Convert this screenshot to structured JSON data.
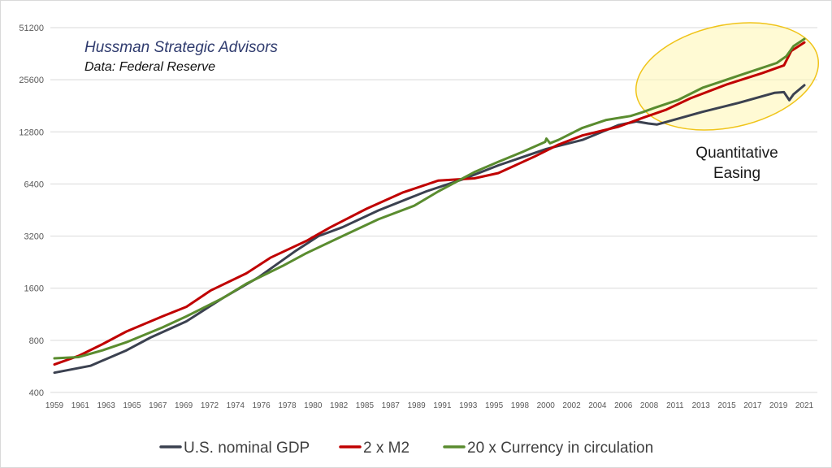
{
  "chart_data": {
    "type": "line",
    "title": "Hussman Strategic Advisors",
    "subtitle": "Data: Federal Reserve",
    "y_scale": "log2",
    "ylim": [
      400,
      51200
    ],
    "y_ticks": [
      "400",
      "800",
      "1600",
      "3200",
      "6400",
      "12800",
      "25600",
      "51200"
    ],
    "x_tick_labels": [
      "1959",
      "1961",
      "1963",
      "1965",
      "1967",
      "1969",
      "1972",
      "1974",
      "1976",
      "1978",
      "1980",
      "1982",
      "1985",
      "1987",
      "1989",
      "1991",
      "1993",
      "1995",
      "1998",
      "2000",
      "2002",
      "2004",
      "2006",
      "2008",
      "2011",
      "2013",
      "2015",
      "2017",
      "2019",
      "2021"
    ],
    "xlim": [
      1959,
      2021.5
    ],
    "annotation": {
      "text_lines": [
        "Quantitative",
        "Easing"
      ]
    },
    "grid": "horizontal",
    "legend_position": "bottom",
    "series": [
      {
        "name": "U.S. nominal GDP",
        "color": "#3b4150",
        "points": [
          [
            1959,
            520
          ],
          [
            1962,
            570
          ],
          [
            1965,
            700
          ],
          [
            1967,
            830
          ],
          [
            1970,
            1030
          ],
          [
            1973,
            1400
          ],
          [
            1976,
            1850
          ],
          [
            1979,
            2600
          ],
          [
            1981,
            3200
          ],
          [
            1983,
            3600
          ],
          [
            1986,
            4500
          ],
          [
            1990,
            5800
          ],
          [
            1993,
            6800
          ],
          [
            1996,
            8200
          ],
          [
            2000,
            10200
          ],
          [
            2003,
            11500
          ],
          [
            2006,
            14000
          ],
          [
            2007.5,
            14700
          ],
          [
            2008.5,
            14300
          ],
          [
            2009.2,
            14100
          ],
          [
            2010,
            14600
          ],
          [
            2013,
            16700
          ],
          [
            2016,
            18800
          ],
          [
            2019,
            21500
          ],
          [
            2019.8,
            21700
          ],
          [
            2020.25,
            19500
          ],
          [
            2020.6,
            21100
          ],
          [
            2021.5,
            23800
          ]
        ]
      },
      {
        "name": "2 x M2",
        "color": "#c00000",
        "points": [
          [
            1959,
            580
          ],
          [
            1961,
            650
          ],
          [
            1963,
            760
          ],
          [
            1965,
            900
          ],
          [
            1968,
            1100
          ],
          [
            1970,
            1250
          ],
          [
            1972,
            1550
          ],
          [
            1975,
            1950
          ],
          [
            1977,
            2400
          ],
          [
            1980,
            3000
          ],
          [
            1982,
            3600
          ],
          [
            1985,
            4600
          ],
          [
            1988,
            5700
          ],
          [
            1991,
            6700
          ],
          [
            1994,
            6900
          ],
          [
            1996,
            7400
          ],
          [
            1999,
            9200
          ],
          [
            2001,
            10800
          ],
          [
            2003,
            12200
          ],
          [
            2006,
            13700
          ],
          [
            2008,
            15400
          ],
          [
            2010,
            17200
          ],
          [
            2012,
            20000
          ],
          [
            2015,
            24000
          ],
          [
            2018,
            28000
          ],
          [
            2019.8,
            31000
          ],
          [
            2020.4,
            37500
          ],
          [
            2021.5,
            42000
          ]
        ]
      },
      {
        "name": "20 x Currency in circulation",
        "color": "#5a8c2f",
        "points": [
          [
            1959,
            630
          ],
          [
            1961,
            640
          ],
          [
            1963,
            700
          ],
          [
            1965,
            780
          ],
          [
            1968,
            950
          ],
          [
            1970,
            1100
          ],
          [
            1973,
            1400
          ],
          [
            1975,
            1700
          ],
          [
            1978,
            2150
          ],
          [
            1980,
            2550
          ],
          [
            1983,
            3200
          ],
          [
            1986,
            4000
          ],
          [
            1989,
            4800
          ],
          [
            1991,
            5800
          ],
          [
            1994,
            7500
          ],
          [
            1996,
            8600
          ],
          [
            1998,
            9800
          ],
          [
            1999.9,
            11200
          ],
          [
            2000,
            11700
          ],
          [
            2000.3,
            11000
          ],
          [
            2001,
            11500
          ],
          [
            2003,
            13500
          ],
          [
            2005,
            15000
          ],
          [
            2007,
            15800
          ],
          [
            2008,
            16600
          ],
          [
            2009,
            17600
          ],
          [
            2011,
            19600
          ],
          [
            2013,
            23000
          ],
          [
            2016,
            27000
          ],
          [
            2019.2,
            32000
          ],
          [
            2020,
            35000
          ],
          [
            2020.6,
            40000
          ],
          [
            2021.5,
            44000
          ]
        ]
      }
    ]
  }
}
